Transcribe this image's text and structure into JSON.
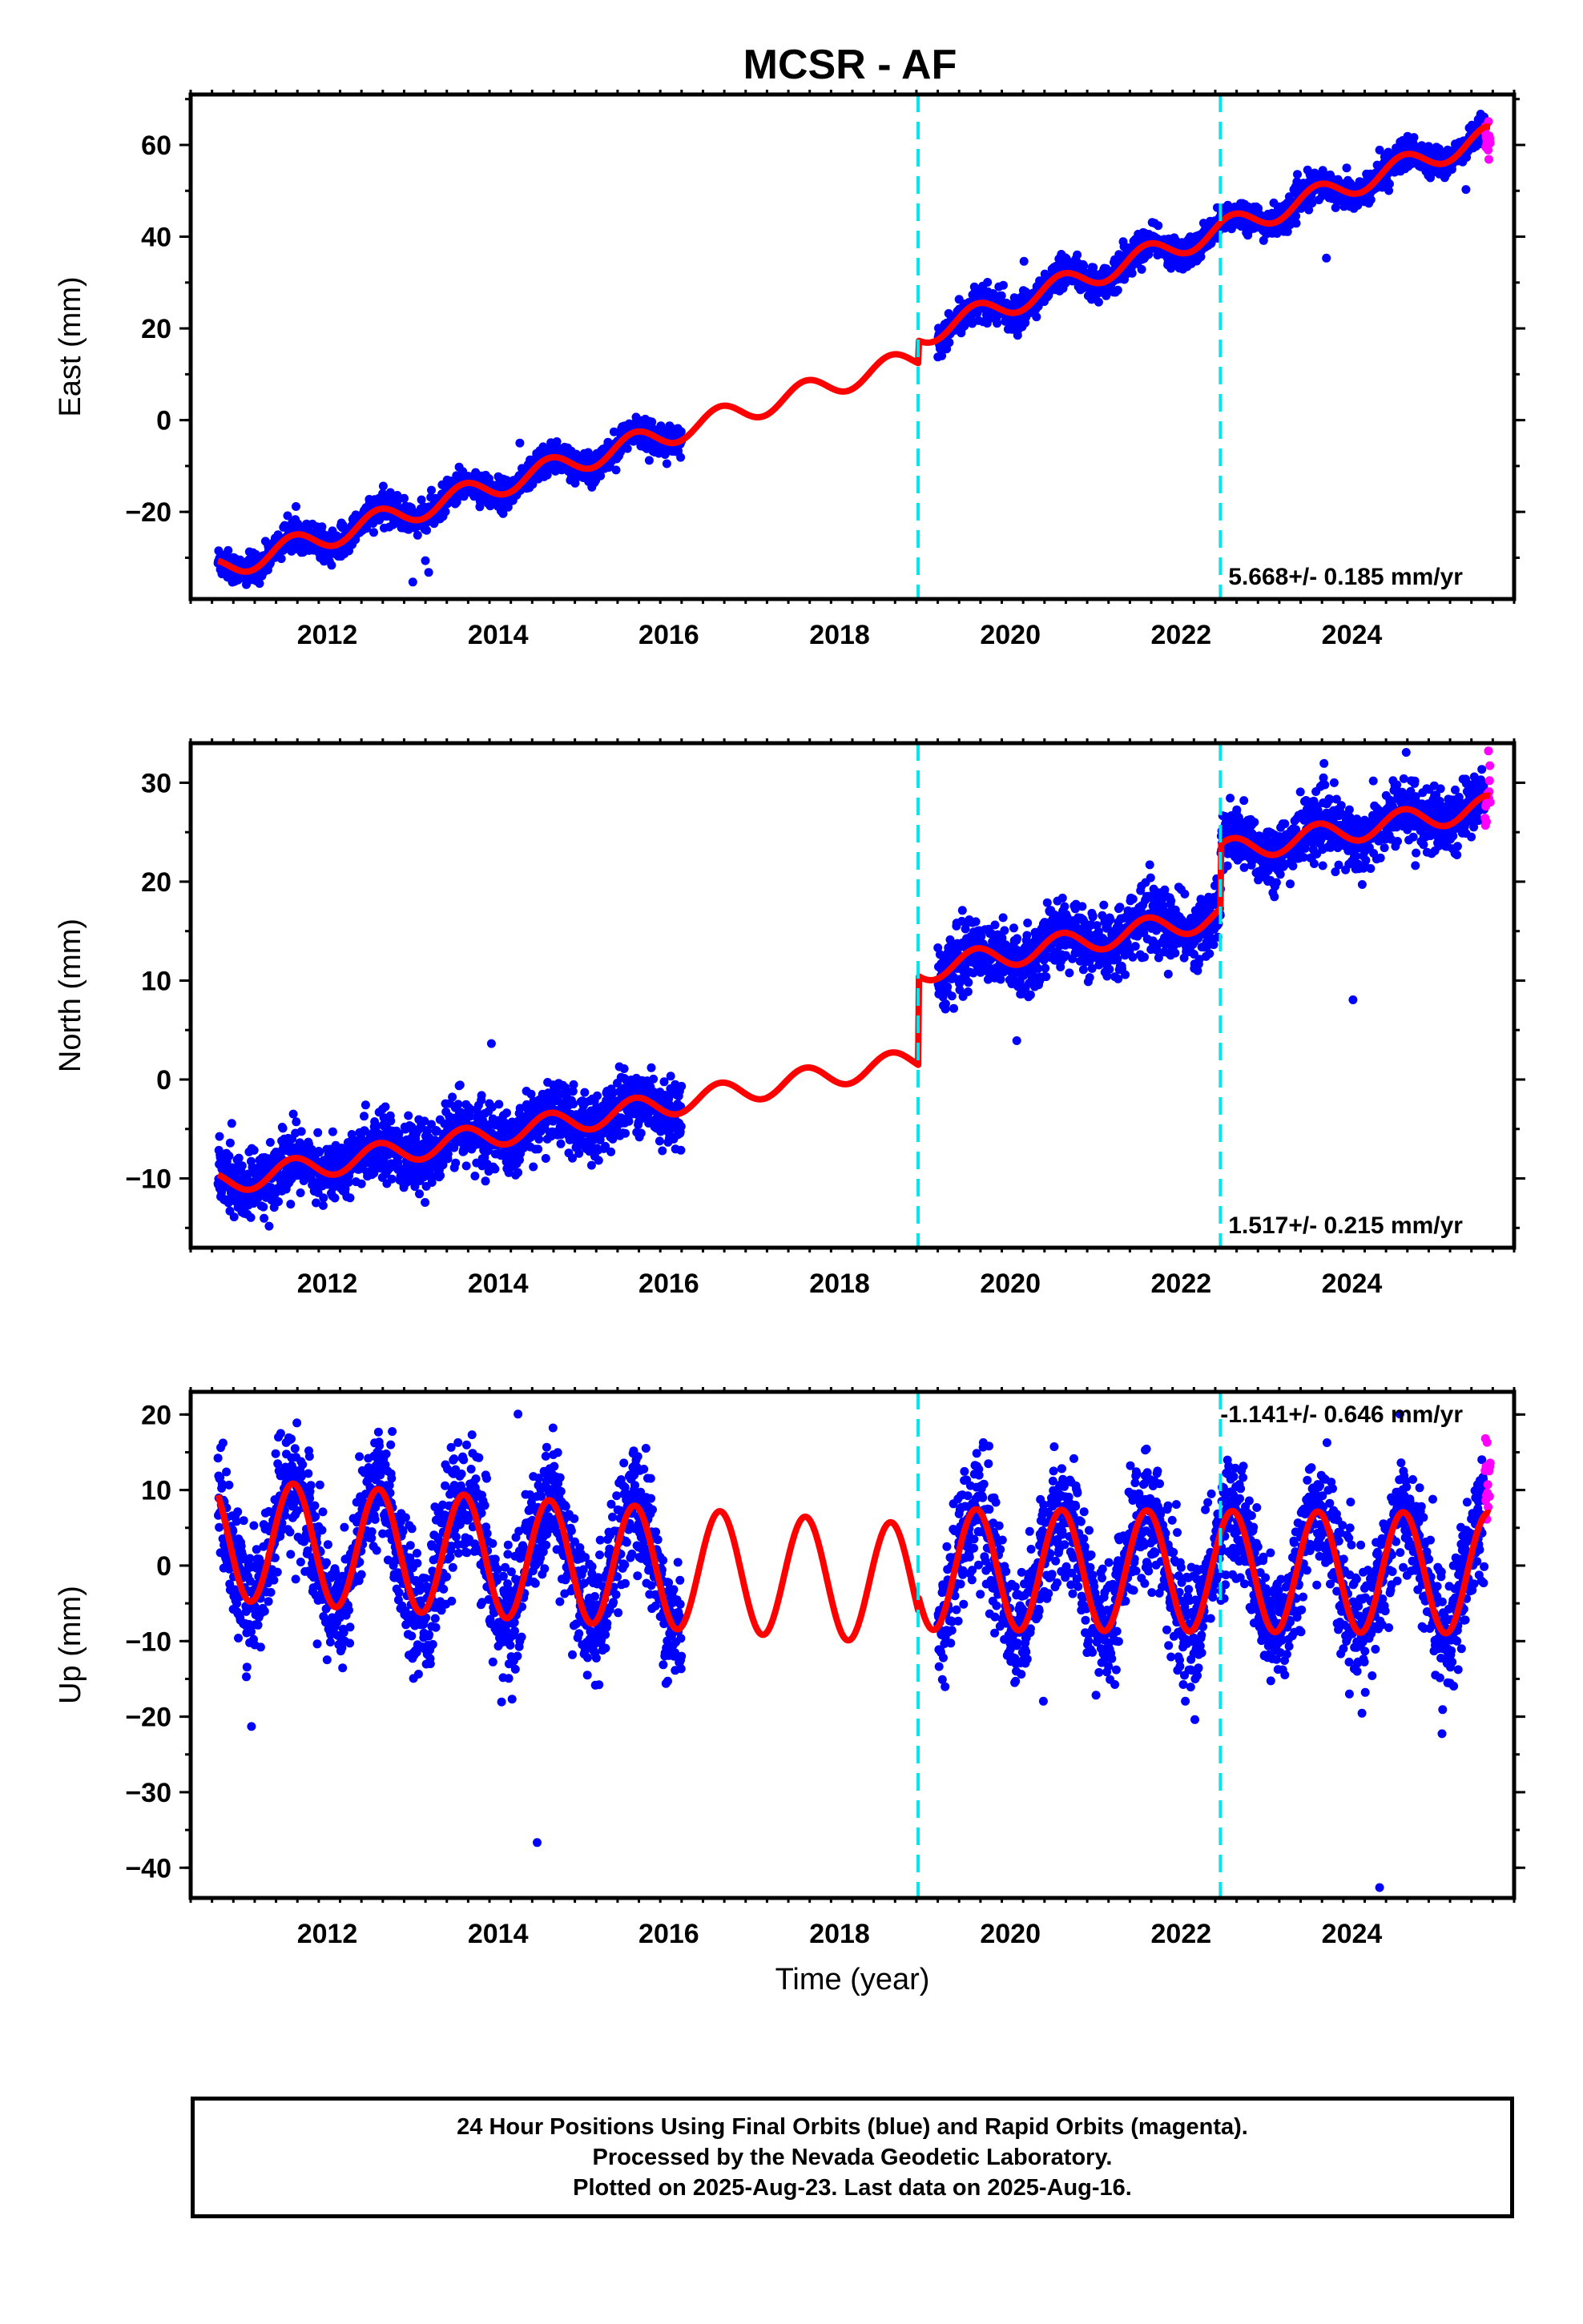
{
  "chart_data": {
    "title": "MCSR - AF",
    "xlabel": "Time (year)",
    "xlim": [
      2010.4,
      2025.9
    ],
    "x_ticks": [
      2012,
      2014,
      2016,
      2018,
      2020,
      2022,
      2024
    ],
    "equipment_changes": [
      2018.92,
      2022.46
    ],
    "final_data_end": 2025.55,
    "last_data": 2025.62,
    "colors": {
      "final": "#0000ff",
      "rapid": "#ff00ff",
      "model": "#ff0000",
      "event": "#00e5ee"
    },
    "panels": [
      {
        "id": "east",
        "type": "scatter",
        "ylabel": "East (mm)",
        "ylim": [
          -39,
          71
        ],
        "y_ticks": [
          -20,
          0,
          20,
          40,
          60
        ],
        "rate_label": "5.668+/- 0.185 mm/yr",
        "rate_position": "bottom-right",
        "data_gap": [
          2016.15,
          2019.15
        ],
        "series": [
          {
            "name": "final",
            "start": 2010.72,
            "end": 2025.55,
            "trend": [
              [
                2010.72,
                -32.5
              ],
              [
                2018.92,
                13.5
              ],
              [
                2018.93,
                18.5
              ],
              [
                2025.55,
                61.5
              ]
            ],
            "seasonal_amplitude": 2.5,
            "scatter_sd": 1.6
          },
          {
            "name": "rapid",
            "start": 2025.56,
            "end": 2025.62,
            "trend": [
              [
                2025.56,
                61
              ],
              [
                2025.62,
                60
              ]
            ],
            "scatter_sd": 1.5
          }
        ]
      },
      {
        "id": "north",
        "type": "scatter",
        "ylabel": "North (mm)",
        "ylim": [
          -17,
          34
        ],
        "y_ticks": [
          -10,
          0,
          10,
          20,
          30
        ],
        "rate_label": "1.517+/- 0.215 mm/yr",
        "rate_position": "bottom-right",
        "data_gap": [
          2016.15,
          2019.15
        ],
        "series": [
          {
            "name": "final",
            "start": 2010.72,
            "end": 2025.55,
            "trend": [
              [
                2010.72,
                -10.5
              ],
              [
                2018.92,
                2.0
              ],
              [
                2018.93,
                11.0
              ],
              [
                2022.46,
                16.5
              ],
              [
                2022.47,
                23.0
              ],
              [
                2025.55,
                27.5
              ]
            ],
            "seasonal_amplitude": 1.2,
            "scatter_sd": 1.6
          },
          {
            "name": "rapid",
            "start": 2025.56,
            "end": 2025.62,
            "trend": [
              [
                2025.56,
                28
              ],
              [
                2025.62,
                30
              ]
            ],
            "scatter_sd": 1.8
          }
        ]
      },
      {
        "id": "up",
        "type": "scatter",
        "ylabel": "Up (mm)",
        "ylim": [
          -44,
          23
        ],
        "y_ticks": [
          -40,
          -30,
          -20,
          -10,
          0,
          10,
          20
        ],
        "rate_label": "-1.141+/- 0.646 mm/yr",
        "rate_position": "top-right",
        "data_gap": [
          2016.15,
          2019.15
        ],
        "series": [
          {
            "name": "final",
            "start": 2010.72,
            "end": 2025.55,
            "trend": [
              [
                2010.72,
                3.5
              ],
              [
                2018.92,
                -2.5
              ],
              [
                2018.93,
                -0.5
              ],
              [
                2025.55,
                -1.0
              ]
            ],
            "seasonal_amplitude": 8.0,
            "scatter_sd": 4.0
          },
          {
            "name": "rapid",
            "start": 2025.56,
            "end": 2025.62,
            "trend": [
              [
                2025.56,
                8
              ],
              [
                2025.62,
                12
              ]
            ],
            "scatter_sd": 5.0
          }
        ]
      }
    ]
  },
  "footer": {
    "line1": "24 Hour Positions Using Final Orbits (blue) and Rapid Orbits (magenta).",
    "line2": "Processed by the Nevada Geodetic Laboratory.",
    "line3": "Plotted on 2025-Aug-23. Last data on 2025-Aug-16."
  }
}
